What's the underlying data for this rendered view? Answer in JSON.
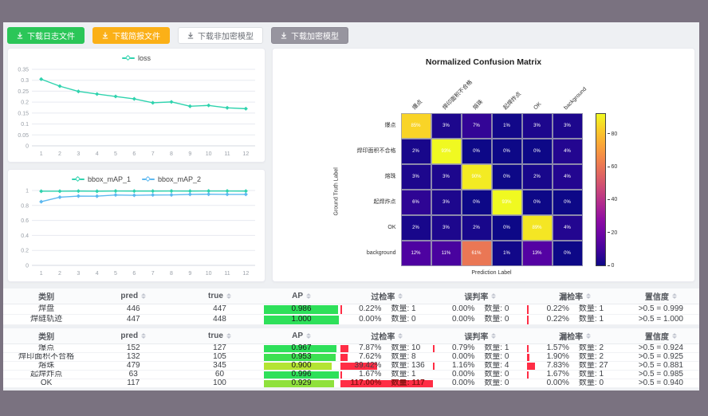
{
  "colors": {
    "outer_bg": "#7a7280",
    "window_bg": "#eef0f3",
    "teal": "#2fd3ae",
    "blue": "#5cb8f0",
    "rate_bar_red": "#ff2d45"
  },
  "toolbar": {
    "buttons": [
      {
        "name": "download-log-button",
        "label": "下载日志文件",
        "variant": "green"
      },
      {
        "name": "download-report-button",
        "label": "下载简报文件",
        "variant": "orange"
      },
      {
        "name": "download-unencrypted-model-button",
        "label": "下载非加密模型",
        "variant": "plain"
      },
      {
        "name": "download-encrypted-model-button",
        "label": "下载加密模型",
        "variant": "gray"
      }
    ]
  },
  "chart_data": [
    {
      "type": "line",
      "title": "",
      "legend": [
        "loss"
      ],
      "x": [
        1,
        2,
        3,
        4,
        5,
        6,
        7,
        8,
        9,
        10,
        11,
        12
      ],
      "series": [
        {
          "name": "loss",
          "color": "#2fd3ae",
          "values": [
            0.305,
            0.273,
            0.249,
            0.237,
            0.226,
            0.215,
            0.197,
            0.201,
            0.181,
            0.185,
            0.174,
            0.17
          ]
        }
      ],
      "yticks": [
        0,
        0.05,
        0.1,
        0.15,
        0.2,
        0.25,
        0.3,
        0.35
      ],
      "ylim": [
        0,
        0.35
      ],
      "grid": true,
      "legend_position": "top"
    },
    {
      "type": "line",
      "title": "",
      "legend": [
        "bbox_mAP_1",
        "bbox_mAP_2"
      ],
      "x": [
        1,
        2,
        3,
        4,
        5,
        6,
        7,
        8,
        9,
        10,
        11,
        12
      ],
      "series": [
        {
          "name": "bbox_mAP_1",
          "color": "#2fd3ae",
          "values": [
            0.99,
            0.99,
            0.992,
            0.99,
            0.993,
            0.992,
            0.992,
            0.993,
            0.992,
            0.993,
            0.993,
            0.992
          ]
        },
        {
          "name": "bbox_mAP_2",
          "color": "#5cb8f0",
          "values": [
            0.85,
            0.91,
            0.925,
            0.924,
            0.94,
            0.936,
            0.94,
            0.941,
            0.948,
            0.95,
            0.948,
            0.948
          ]
        }
      ],
      "yticks": [
        0,
        0.2,
        0.4,
        0.6,
        0.8,
        1
      ],
      "ylim": [
        0,
        1
      ],
      "grid": true,
      "legend_position": "top"
    },
    {
      "type": "heatmap",
      "title": "Normalized Confusion Matrix",
      "xlabel": "Prediction Label",
      "ylabel": "Ground Truth Label",
      "labels": [
        "爆点",
        "焊印面积不合格",
        "熔珠",
        "起焊炸点",
        "OK",
        "background"
      ],
      "values": [
        [
          85,
          3,
          7,
          1,
          3,
          3
        ],
        [
          2,
          93,
          0,
          0,
          0,
          4
        ],
        [
          3,
          3,
          90,
          0,
          2,
          4
        ],
        [
          6,
          3,
          0,
          93,
          0,
          0
        ],
        [
          2,
          3,
          2,
          0,
          89,
          4
        ],
        [
          12,
          11,
          61,
          1,
          13,
          0
        ]
      ],
      "unit": "%",
      "vmin": 0,
      "vmax": 93,
      "colorbar_ticks": [
        80,
        60,
        40,
        20,
        0
      ],
      "colormap": "plasma"
    }
  ],
  "tables": [
    {
      "headers": [
        {
          "label": "类别",
          "sortable": false
        },
        {
          "label": "pred",
          "sortable": true
        },
        {
          "label": "true",
          "sortable": true
        },
        {
          "label": "AP",
          "sortable": true
        },
        {
          "label": "过检率",
          "sortable": true
        },
        {
          "label": "误判率",
          "sortable": true
        },
        {
          "label": "漏检率",
          "sortable": true
        },
        {
          "label": "置信度",
          "sortable": true
        }
      ],
      "count_label": "数量:",
      "rows": [
        {
          "name": "焊盘",
          "pred": "446",
          "true": "447",
          "ap": "0.986",
          "ap_color": "#2ee05a",
          "rates": [
            {
              "pct": "0.22%",
              "count": "数量: 1",
              "value": 0.22
            },
            {
              "pct": "0.00%",
              "count": "数量: 0",
              "value": 0
            },
            {
              "pct": "0.22%",
              "count": "数量: 1",
              "value": 0.22
            }
          ],
          "conf": ">0.5 = 0.999"
        },
        {
          "name": "焊缝轨迹",
          "pred": "447",
          "true": "448",
          "ap": "1.000",
          "ap_color": "#2ee05a",
          "rates": [
            {
              "pct": "0.00%",
              "count": "数量: 0",
              "value": 0
            },
            {
              "pct": "0.00%",
              "count": "数量: 0",
              "value": 0
            },
            {
              "pct": "0.22%",
              "count": "数量: 1",
              "value": 0.22
            }
          ],
          "conf": ">0.5 = 1.000"
        }
      ]
    },
    {
      "headers": [
        {
          "label": "类别",
          "sortable": false
        },
        {
          "label": "pred",
          "sortable": true
        },
        {
          "label": "true",
          "sortable": true
        },
        {
          "label": "AP",
          "sortable": true
        },
        {
          "label": "过检率",
          "sortable": true
        },
        {
          "label": "误判率",
          "sortable": true
        },
        {
          "label": "漏检率",
          "sortable": true
        },
        {
          "label": "置信度",
          "sortable": true
        }
      ],
      "count_label": "数量:",
      "rows": [
        {
          "name": "爆点",
          "pred": "152",
          "true": "127",
          "ap": "0.967",
          "ap_color": "#2ee05a",
          "rates": [
            {
              "pct": "7.87%",
              "count": "数量: 10",
              "value": 7.87
            },
            {
              "pct": "0.79%",
              "count": "数量: 1",
              "value": 0.79
            },
            {
              "pct": "1.57%",
              "count": "数量: 2",
              "value": 1.57
            }
          ],
          "conf": ">0.5 = 0.924"
        },
        {
          "name": "焊印面积不合格",
          "pred": "132",
          "true": "105",
          "ap": "0.953",
          "ap_color": "#3ce051",
          "rates": [
            {
              "pct": "7.62%",
              "count": "数量: 8",
              "value": 7.62
            },
            {
              "pct": "0.00%",
              "count": "数量: 0",
              "value": 0
            },
            {
              "pct": "1.90%",
              "count": "数量: 2",
              "value": 1.9
            }
          ],
          "conf": ">0.5 = 0.925"
        },
        {
          "name": "熔珠",
          "pred": "479",
          "true": "345",
          "ap": "0.900",
          "ap_color": "#b4e433",
          "rates": [
            {
              "pct": "39.42%",
              "count": "数量: 136",
              "value": 39.42
            },
            {
              "pct": "1.16%",
              "count": "数量: 4",
              "value": 1.16
            },
            {
              "pct": "7.83%",
              "count": "数量: 27",
              "value": 7.83
            }
          ],
          "conf": ">0.5 = 0.881"
        },
        {
          "name": "起焊炸点",
          "pred": "63",
          "true": "60",
          "ap": "0.996",
          "ap_color": "#2ee05a",
          "rates": [
            {
              "pct": "1.67%",
              "count": "数量: 1",
              "value": 1.67
            },
            {
              "pct": "0.00%",
              "count": "数量: 0",
              "value": 0
            },
            {
              "pct": "1.67%",
              "count": "数量: 1",
              "value": 1.67
            }
          ],
          "conf": ">0.5 = 0.985"
        },
        {
          "name": "OK",
          "pred": "117",
          "true": "100",
          "ap": "0.929",
          "ap_color": "#8fe13c",
          "rates": [
            {
              "pct": "117.00%",
              "count": "数量: 117",
              "value": 117
            },
            {
              "pct": "0.00%",
              "count": "数量: 0",
              "value": 0
            },
            {
              "pct": "0.00%",
              "count": "数量: 0",
              "value": 0
            }
          ],
          "conf": ">0.5 = 0.940"
        }
      ]
    }
  ]
}
